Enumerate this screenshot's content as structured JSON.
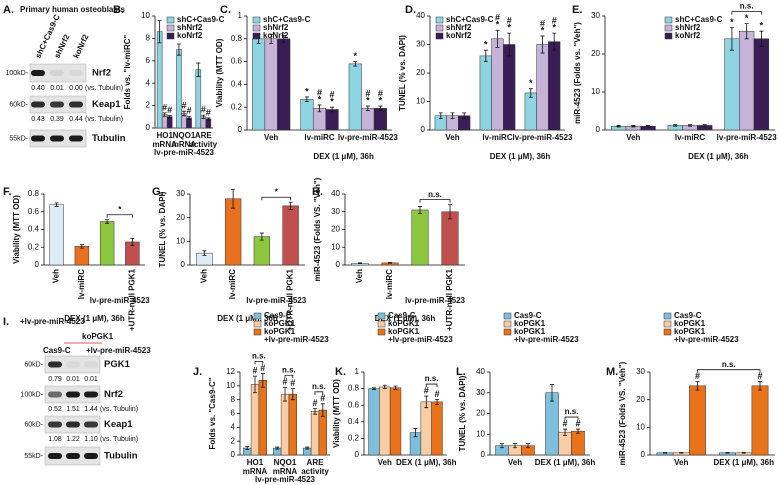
{
  "chart_data": [
    {
      "type": "bar",
      "panel": "B.",
      "ylabel": "Folds vs. \"lv-miRC\"",
      "categories": [
        [
          "HO1",
          "mRNA"
        ],
        [
          "NQO1",
          "mRNA"
        ],
        [
          "ARE",
          "activity"
        ]
      ],
      "series": [
        {
          "name": "shC+Cas9-C",
          "color": "#8ed4e2",
          "values": [
            8.6,
            7.0,
            5.2
          ],
          "errors": [
            1.0,
            0.5,
            0.6
          ]
        },
        {
          "name": "shNrf2",
          "color": "#c7b3d8",
          "values": [
            1.2,
            1.3,
            1.0
          ],
          "errors": [
            0.15,
            0.2,
            0.15
          ],
          "significance": [
            [
              "#"
            ],
            [
              "#"
            ],
            [
              "#"
            ]
          ]
        },
        {
          "name": "koNrf2",
          "color": "#3a1d56",
          "values": [
            1.0,
            0.9,
            0.8
          ],
          "errors": [
            0.1,
            0.15,
            0.1
          ],
          "significance": [
            [
              "#"
            ],
            [
              "#"
            ],
            [
              "#"
            ]
          ]
        }
      ],
      "ylim": [
        0,
        10
      ],
      "yticks": [
        0,
        2,
        4,
        6,
        8,
        10
      ],
      "legend": "upper right",
      "group_label": "lv-pre-miR-4523",
      "group_label_color": "#1f3fd1"
    },
    {
      "type": "bar",
      "panel": "C.",
      "ylabel": "Viability (MTT OD)",
      "categories": [
        "Veh",
        "lv-miRC",
        "lv-pre-miR-4523"
      ],
      "series": [
        {
          "name": "shC+Cas9-C",
          "color": "#8ed4e2",
          "values": [
            0.8,
            0.27,
            0.58
          ],
          "errors": [
            0.04,
            0.02,
            0.02
          ],
          "significance": [
            null,
            [
              "*"
            ],
            [
              "*"
            ]
          ]
        },
        {
          "name": "shNrf2",
          "color": "#c7b3d8",
          "values": [
            0.8,
            0.19,
            0.19
          ],
          "errors": [
            0.04,
            0.03,
            0.02
          ],
          "significance": [
            null,
            [
              "#",
              "*"
            ],
            [
              "#",
              "*"
            ]
          ]
        },
        {
          "name": "koNrf2",
          "color": "#3a1d56",
          "values": [
            0.8,
            0.18,
            0.19
          ],
          "errors": [
            0.03,
            0.02,
            0.02
          ],
          "significance": [
            null,
            [
              "#",
              "*"
            ],
            [
              "#",
              "*"
            ]
          ]
        }
      ],
      "ylim": [
        0,
        1
      ],
      "yticks": [
        0,
        0.2,
        0.4,
        0.6,
        0.8,
        1
      ],
      "legend": "upper left",
      "xlabel": "DEX (1 μM), 36h",
      "xlabel_color": "#e0201b"
    },
    {
      "type": "bar",
      "panel": "D.",
      "ylabel": "TUNEL (% vs. DAPI)",
      "categories": [
        "Veh",
        "lv-miRC",
        "lv-pre-miR-4523"
      ],
      "series": [
        {
          "name": "shC+Cas9-C",
          "color": "#8ed4e2",
          "values": [
            5,
            26,
            13
          ],
          "errors": [
            1,
            2,
            1.5
          ],
          "significance": [
            null,
            [
              "*"
            ],
            [
              "*"
            ]
          ]
        },
        {
          "name": "shNrf2",
          "color": "#c7b3d8",
          "values": [
            5,
            32,
            30
          ],
          "errors": [
            1,
            3,
            3
          ],
          "significance": [
            null,
            [
              "#",
              "*"
            ],
            [
              "#",
              "*"
            ]
          ]
        },
        {
          "name": "koNrf2",
          "color": "#3a1d56",
          "values": [
            5,
            30,
            31
          ],
          "errors": [
            1,
            4,
            3
          ],
          "significance": [
            null,
            [
              "#",
              "*"
            ],
            [
              "#",
              "*"
            ]
          ]
        }
      ],
      "ylim": [
        0,
        40
      ],
      "yticks": [
        0,
        10,
        20,
        30,
        40
      ],
      "legend": "upper left",
      "xlabel": "DEX (1 μM), 36h",
      "xlabel_color": "#e0201b"
    },
    {
      "type": "bar",
      "panel": "E.",
      "ylabel": "miR-4523 (Folds vs. \"Veh\")",
      "categories": [
        "Veh",
        "lv-miRC",
        "lv-pre-miR-4523"
      ],
      "series": [
        {
          "name": "shC+Cas9-C",
          "color": "#8ed4e2",
          "values": [
            1,
            1.2,
            24
          ],
          "errors": [
            0.2,
            0.2,
            3
          ],
          "significance": [
            null,
            null,
            [
              "*"
            ]
          ]
        },
        {
          "name": "shNrf2",
          "color": "#c7b3d8",
          "values": [
            1,
            1.2,
            26
          ],
          "errors": [
            0.2,
            0.2,
            2
          ],
          "significance": [
            null,
            null,
            [
              "*"
            ]
          ]
        },
        {
          "name": "koNrf2",
          "color": "#3a1d56",
          "values": [
            1,
            1.2,
            24
          ],
          "errors": [
            0.2,
            0.2,
            2
          ],
          "significance": [
            null,
            null,
            [
              "*"
            ]
          ]
        }
      ],
      "ylim": [
        0,
        30
      ],
      "yticks": [
        0,
        10,
        20,
        30
      ],
      "legend": "upper center",
      "brackets": [
        "n.s."
      ],
      "xlabel": "DEX (1 μM), 36h",
      "xlabel_color": "#e0201b"
    },
    {
      "type": "bar",
      "panel": "F.",
      "ylabel": "Viability (MTT OD)",
      "categories": [
        "Veh",
        "lv-miRC",
        null,
        "+UTR-null PGK1"
      ],
      "category_colors": [
        null,
        null,
        null,
        "#e0201b"
      ],
      "series": [
        {
          "colors": [
            "#dcedf6",
            "#e8711f",
            "#8dc63f",
            "#c0504d"
          ],
          "values": [
            0.68,
            0.21,
            0.49,
            0.26
          ],
          "errors": [
            0.02,
            0.02,
            0.02,
            0.04
          ]
        }
      ],
      "ylim": [
        0,
        0.8
      ],
      "yticks": [
        0,
        0.2,
        0.4,
        0.6,
        0.8
      ],
      "brackets": [
        "*"
      ],
      "group_label": "lv-pre-miR-4523",
      "group_label_color": "#3aa12a",
      "xlabel": "DEX (1 μM), 36h",
      "xlabel_color": "#111111"
    },
    {
      "type": "bar",
      "panel": "G.",
      "ylabel": "TUNEL (% vs. DAPI)",
      "categories": [
        "Veh",
        "lv-miRC",
        null,
        "+UTR-null PGK1"
      ],
      "category_colors": [
        null,
        null,
        null,
        "#e0201b"
      ],
      "series": [
        {
          "colors": [
            "#dcedf6",
            "#e8711f",
            "#8dc63f",
            "#c0504d"
          ],
          "values": [
            5,
            28,
            12,
            25
          ],
          "errors": [
            1,
            4,
            1.5,
            1.5
          ]
        }
      ],
      "ylim": [
        0,
        30
      ],
      "yticks": [
        0,
        10,
        20,
        30
      ],
      "brackets": [
        "*"
      ],
      "group_label": "lv-pre-miR-4523",
      "group_label_color": "#3aa12a",
      "xlabel": "DEX (1 μM), 36h",
      "xlabel_color": "#111111"
    },
    {
      "type": "bar",
      "panel": "H.",
      "ylabel": "miR-4523 (Folds VS. \"Veh\")",
      "categories": [
        "Veh",
        "lv-miRC",
        null,
        "+UTR-null PGK1"
      ],
      "category_colors": [
        null,
        null,
        null,
        "#e0201b"
      ],
      "series": [
        {
          "colors": [
            "#dcedf6",
            "#e8711f",
            "#8dc63f",
            "#c0504d"
          ],
          "values": [
            1,
            1.2,
            31,
            30
          ],
          "errors": [
            0.2,
            0.2,
            2,
            4
          ]
        }
      ],
      "ylim": [
        0,
        40
      ],
      "yticks": [
        0,
        10,
        20,
        30,
        40
      ],
      "brackets": [
        "n.s."
      ],
      "group_label": "lv-pre-miR-4523",
      "group_label_color": "#3aa12a",
      "xlabel": "DEX (1 μM), 36h",
      "xlabel_color": "#111111"
    },
    {
      "type": "bar",
      "panel": "J.",
      "ylabel": "Folds vs. \"Cas9-C\"",
      "categories": [
        [
          "HO1",
          "mRNA"
        ],
        [
          "NQO1",
          "mRNA"
        ],
        [
          "ARE",
          "activity"
        ]
      ],
      "series": [
        {
          "name": "Cas9-C",
          "color": "#7dbfdc",
          "values": [
            1,
            1,
            1
          ],
          "errors": [
            0.2,
            0.15,
            0.15
          ]
        },
        {
          "name": "koPGK1",
          "color": "#f9cda5",
          "values": [
            10.2,
            8.8,
            6.3
          ],
          "errors": [
            1.2,
            1.0,
            0.4
          ],
          "significance": [
            [
              "#"
            ],
            [
              "#"
            ],
            [
              "#"
            ]
          ]
        },
        {
          "name": "koPGK1",
          "color": "#e8731a",
          "values": [
            10.8,
            8.8,
            6.5
          ],
          "errors": [
            1.0,
            0.8,
            0.9
          ],
          "significance": [
            [
              "#"
            ],
            [
              "#"
            ],
            [
              "#"
            ]
          ]
        }
      ],
      "ylim": [
        0,
        12
      ],
      "yticks": [
        0,
        2,
        4,
        6,
        8,
        10,
        12
      ],
      "legend": "top left",
      "legend_note": "+lv-pre-miR-4523",
      "legend_note_color": "#1f3fd1",
      "brackets": [
        "n.s.",
        "n.s.",
        "n.s."
      ],
      "group_label": "lv-pre-miR-4523",
      "group_label_color": "#1f3fd1"
    },
    {
      "type": "bar",
      "panel": "K.",
      "ylabel": "Viability (MTT OD)",
      "categories": [
        "Veh",
        "DEX (1 μM), 36h"
      ],
      "category_colors": [
        null,
        "#e0201b"
      ],
      "series": [
        {
          "name": "Cas9-C",
          "color": "#7dbfdc",
          "values": [
            0.8,
            0.27
          ],
          "errors": [
            0.01,
            0.05
          ]
        },
        {
          "name": "koPGK1",
          "color": "#f9cda5",
          "values": [
            0.82,
            0.64
          ],
          "errors": [
            0.02,
            0.07
          ],
          "significance": [
            null,
            [
              "#"
            ]
          ]
        },
        {
          "name": "koPGK1",
          "color": "#e8731a",
          "values": [
            0.81,
            0.64
          ],
          "errors": [
            0.02,
            0.03
          ],
          "significance": [
            null,
            [
              "#"
            ]
          ]
        }
      ],
      "ylim": [
        0,
        1
      ],
      "yticks": [
        0,
        0.2,
        0.4,
        0.6,
        0.8,
        1
      ],
      "legend": "top left",
      "legend_note": "+lv-pre-miR-4523",
      "legend_note_color": "#1f3fd1",
      "brackets": [
        "n.s."
      ]
    },
    {
      "type": "bar",
      "panel": "L.",
      "ylabel": "TUNEL (% vs. DAPI)",
      "categories": [
        "Veh",
        "DEX (1 μM), 36h"
      ],
      "category_colors": [
        null,
        "#e0201b"
      ],
      "series": [
        {
          "name": "Cas9-C",
          "color": "#7dbfdc",
          "values": [
            4.5,
            30
          ],
          "errors": [
            1,
            4
          ]
        },
        {
          "name": "koPGK1",
          "color": "#f9cda5",
          "values": [
            4.5,
            11
          ],
          "errors": [
            1,
            1.5
          ],
          "significance": [
            null,
            [
              "#"
            ]
          ]
        },
        {
          "name": "koPGK1",
          "color": "#e8731a",
          "values": [
            4.5,
            11.5
          ],
          "errors": [
            1,
            1
          ],
          "significance": [
            null,
            [
              "#"
            ]
          ]
        }
      ],
      "ylim": [
        0,
        40
      ],
      "yticks": [
        0,
        10,
        20,
        30,
        40
      ],
      "legend": "top left",
      "legend_note": "+lv-pre-miR-4523",
      "legend_note_color": "#1f3fd1",
      "brackets": [
        "n.s."
      ]
    },
    {
      "type": "bar",
      "panel": "M.",
      "ylabel": "miR-4523 (Folds VS. \"Veh\")",
      "categories": [
        "Veh",
        "DEX (1 μM), 36h"
      ],
      "category_colors": [
        null,
        "#e0201b"
      ],
      "series": [
        {
          "name": "Cas9-C",
          "color": "#7dbfdc",
          "values": [
            0.8,
            0.8
          ],
          "errors": [
            0.1,
            0.1
          ]
        },
        {
          "name": "koPGK1",
          "color": "#f9cda5",
          "values": [
            0.8,
            0.8
          ],
          "errors": [
            0.1,
            0.1
          ]
        },
        {
          "name": "koPGK1",
          "color": "#e8731a",
          "values": [
            25,
            25
          ],
          "errors": [
            1.5,
            1.5
          ],
          "significance": [
            [
              "#"
            ],
            [
              "#"
            ]
          ]
        }
      ],
      "ylim": [
        0,
        30
      ],
      "yticks": [
        0,
        10,
        20,
        30
      ],
      "legend": "top left",
      "legend_note": "+lv-pre-miR-4523",
      "legend_note_color": "#1f3fd1",
      "brackets": [
        "n.s."
      ]
    }
  ],
  "blots": [
    {
      "panel": "A.",
      "title": "Primary human osteoblasts",
      "title_color": "#1f3fd1",
      "lanes": [
        "shC+Cas9-C",
        "shNrf2",
        "koNrf2"
      ],
      "rows": [
        {
          "marker": "100kD-",
          "protein": "Nrf2",
          "quantification": [
            "0.40",
            "0.01",
            "0.00"
          ],
          "note": "(vs. Tubulin)"
        },
        {
          "marker": "60kD-",
          "protein": "Keap1",
          "quantification": [
            "0.43",
            "0.39",
            "0.44"
          ],
          "note": "(vs. Tubulin)"
        },
        {
          "marker": "55kD-",
          "protein": "Tubulin"
        }
      ]
    },
    {
      "panel": "I.",
      "title": "+lv-pre-miR-4523",
      "title_color": "#1f3fd1",
      "lanes": [
        "Cas9-C"
      ],
      "lane_group": "koPGK1",
      "lane_group_color": "#e0201b",
      "lane_note": "+lv-pre-miR-4523",
      "lane_note_color": "#1f3fd1",
      "rows": [
        {
          "marker": "60kD-",
          "protein": "PGK1",
          "quantification": [
            "0.79",
            "0.01",
            "0.01"
          ]
        },
        {
          "marker": "100kD-",
          "protein": "Nrf2",
          "quantification": [
            "0.52",
            "1.51",
            "1.44"
          ],
          "note": "(vs. Tubulin)"
        },
        {
          "marker": "60kD-",
          "protein": "Keap1",
          "quantification": [
            "1.08",
            "1.22",
            "1.10"
          ],
          "note": "(vs. Tubulin)"
        },
        {
          "marker": "55kD-",
          "protein": "Tubulin"
        }
      ]
    }
  ]
}
